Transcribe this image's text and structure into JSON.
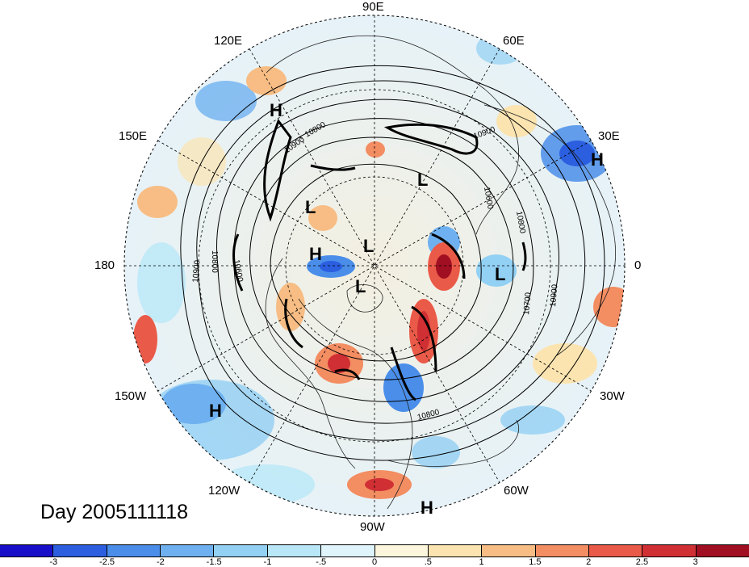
{
  "title": "Day 2005111118",
  "longitude_labels": {
    "lon_90e": "90E",
    "lon_120e": "120E",
    "lon_60e": "60E",
    "lon_150e": "150E",
    "lon_30e": "30E",
    "lon_180": "180",
    "lon_0": "0",
    "lon_150w": "150W",
    "lon_30w": "30W",
    "lon_120w": "120W",
    "lon_60w": "60W",
    "lon_90w": "90W"
  },
  "contour_labels": [
    "10900",
    "10800",
    "10900",
    "10600",
    "10800",
    "10800",
    "10600",
    "10900",
    "10700",
    "10900",
    "10800"
  ],
  "pressure_markers": [
    "H",
    "H",
    "L",
    "L",
    "L",
    "H",
    "L",
    "L",
    "H",
    "H"
  ],
  "colorbar": {
    "labels": [
      "-3",
      "-2.5",
      "-2",
      "-1.5",
      "-1",
      "-.5",
      "0",
      ".5",
      "1",
      "1.5",
      "2",
      "2.5",
      "3"
    ],
    "colors": [
      "#1a0fc8",
      "#2b5fe0",
      "#4a8eea",
      "#6fb1f0",
      "#92d0f4",
      "#b9e7f7",
      "#dff4fb",
      "#fbf6dc",
      "#fbe4b0",
      "#f7bd84",
      "#f38d62",
      "#ea5a48",
      "#d02f34",
      "#a10f22"
    ]
  }
}
